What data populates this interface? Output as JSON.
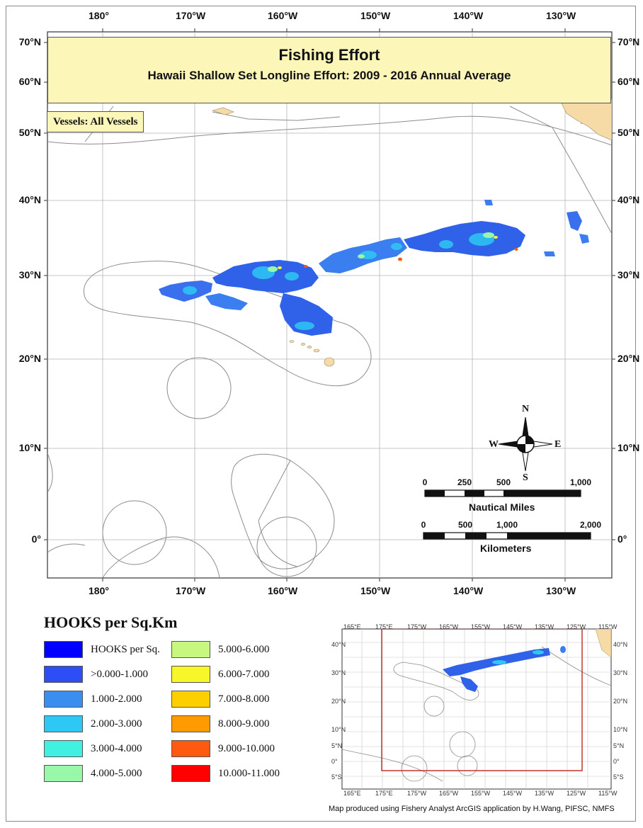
{
  "map": {
    "title": "Fishing Effort",
    "subtitle": "Hawaii Shallow Set Longline Effort: 2009 - 2016 Annual Average",
    "vessels_label": "Vessels: All Vessels",
    "lon_labels": [
      "180°",
      "170°W",
      "160°W",
      "150°W",
      "140°W",
      "130°W"
    ],
    "lat_labels_left": [
      "70°N",
      "60°N",
      "50°N",
      "40°N",
      "30°N",
      "20°N",
      "10°N",
      "0°"
    ],
    "lat_labels_right": [
      "70°N",
      "60°N",
      "50°N",
      "40°N",
      "30°N",
      "20°N",
      "10°N",
      "0°"
    ],
    "land_color": "#f6dba6",
    "eez_color": "#8c8c8c"
  },
  "compass": {
    "n": "N",
    "s": "S",
    "e": "E",
    "w": "W"
  },
  "scalebar": {
    "nautical_ticks": [
      "0",
      "250",
      "500",
      "1,000"
    ],
    "nautical_title": "Nautical Miles",
    "km_ticks": [
      "0",
      "500",
      "1,000",
      "2,000"
    ],
    "km_title": "Kilometers"
  },
  "legend": {
    "title": "HOOKS per Sq.Km",
    "items": [
      {
        "label": "HOOKS per Sq.",
        "color": "#0000ff"
      },
      {
        "label": ">0.000-1.000",
        "color": "#2e4ef5"
      },
      {
        "label": "1.000-2.000",
        "color": "#3a8ef0"
      },
      {
        "label": "2.000-3.000",
        "color": "#2ec8f4"
      },
      {
        "label": "3.000-4.000",
        "color": "#40f0e0"
      },
      {
        "label": "4.000-5.000",
        "color": "#98f7a8"
      },
      {
        "label": "5.000-6.000",
        "color": "#c8f780"
      },
      {
        "label": "6.000-7.000",
        "color": "#f6f628"
      },
      {
        "label": "7.000-8.000",
        "color": "#fcd000"
      },
      {
        "label": "8.000-9.000",
        "color": "#ff9a00"
      },
      {
        "label": "9.000-10.000",
        "color": "#ff5a10"
      },
      {
        "label": "10.000-11.000",
        "color": "#ff0000"
      }
    ]
  },
  "inset": {
    "top_labels": [
      "165°E",
      "175°E",
      "175°W",
      "165°W",
      "155°W",
      "145°W",
      "135°W",
      "125°W",
      "115°W"
    ],
    "bottom_labels": [
      "165°E",
      "175°E",
      "175°W",
      "165°W",
      "155°W",
      "145°W",
      "135°W",
      "125°W",
      "115°W"
    ],
    "left_labels": [
      "40°N",
      "30°N",
      "20°N",
      "10°N",
      "5°N",
      "0°",
      "5°S"
    ],
    "right_labels": [
      "40°N",
      "30°N",
      "20°N",
      "10°N",
      "5°N",
      "0°",
      "5°S"
    ],
    "frame_color": "#c0392b"
  },
  "credit": "Map produced using Fishery Analyst ArcGIS application by H.Wang, PIFSC, NMFS"
}
